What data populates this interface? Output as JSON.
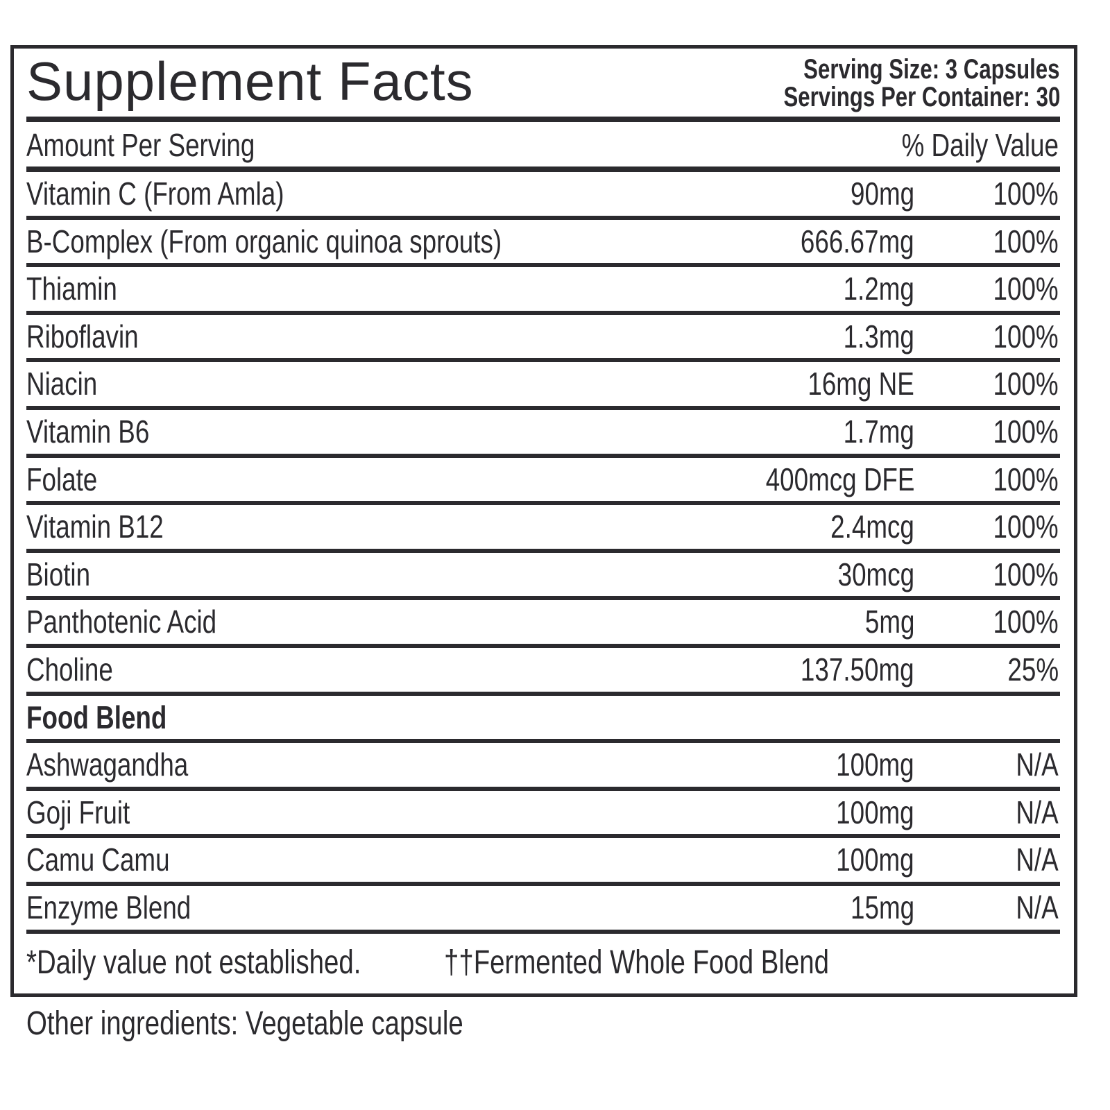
{
  "header": {
    "title": "Supplement Facts",
    "serving_size": "Serving Size: 3 Capsules",
    "servings_per_container": "Servings Per Container: 30"
  },
  "columns": {
    "amount": "Amount Per Serving",
    "dv": "% Daily Value"
  },
  "nutrients": [
    {
      "name": "Vitamin C (From Amla)",
      "amount": "90mg",
      "dv": "100%"
    },
    {
      "name": "B-Complex (From organic quinoa sprouts)",
      "amount": "666.67mg",
      "dv": "100%"
    },
    {
      "name": "Thiamin",
      "amount": "1.2mg",
      "dv": "100%"
    },
    {
      "name": "Riboflavin",
      "amount": "1.3mg",
      "dv": "100%"
    },
    {
      "name": "Niacin",
      "amount": "16mg NE",
      "dv": "100%"
    },
    {
      "name": "Vitamin B6",
      "amount": "1.7mg",
      "dv": "100%"
    },
    {
      "name": "Folate",
      "amount": "400mcg DFE",
      "dv": "100%"
    },
    {
      "name": "Vitamin B12",
      "amount": "2.4mcg",
      "dv": "100%"
    },
    {
      "name": "Biotin",
      "amount": "30mcg",
      "dv": "100%"
    },
    {
      "name": "Panthotenic Acid",
      "amount": "5mg",
      "dv": "100%"
    },
    {
      "name": "Choline",
      "amount": "137.50mg",
      "dv": "25%"
    }
  ],
  "food_blend": {
    "title": "Food Blend",
    "rows": [
      {
        "name": "Ashwagandha",
        "amount": "100mg",
        "dv": "N/A"
      },
      {
        "name": "Goji Fruit",
        "amount": "100mg",
        "dv": "N/A"
      },
      {
        "name": "Camu Camu",
        "amount": "100mg",
        "dv": "N/A"
      },
      {
        "name": "Enzyme Blend",
        "amount": "15mg",
        "dv": "N/A"
      }
    ]
  },
  "footnotes": [
    "*Daily value not established.",
    "††Fermented Whole Food Blend"
  ],
  "other_ingredients": "Other ingredients: Vegetable capsule"
}
